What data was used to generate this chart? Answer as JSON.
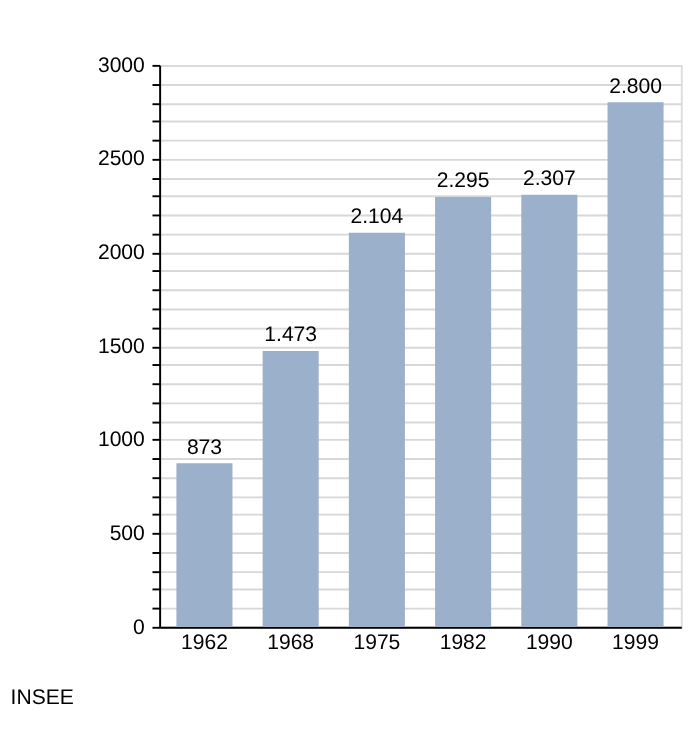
{
  "chart_data": {
    "type": "bar",
    "categories": [
      "1962",
      "1968",
      "1975",
      "1982",
      "1990",
      "1999"
    ],
    "values": [
      873,
      1473,
      2104,
      2295,
      2307,
      2800
    ],
    "value_labels": [
      "873",
      "1.473",
      "2.104",
      "2.295",
      "2.307",
      "2.800"
    ],
    "color": "#9ab0cb",
    "ylim": [
      0,
      3000
    ],
    "yticks": [
      0,
      {
        "value": 100,
        "label": null
      },
      {
        "value": 200,
        "label": null
      },
      {
        "value": 300,
        "label": null
      },
      {
        "value": 400,
        "label": null
      },
      500,
      {
        "value": 600,
        "label": null
      },
      {
        "value": 700,
        "label": null
      },
      {
        "value": 800,
        "label": null
      },
      {
        "value": 900,
        "label": null
      },
      1000,
      {
        "value": 1100,
        "label": null
      },
      {
        "value": 1200,
        "label": null
      },
      {
        "value": 1300,
        "label": null
      },
      {
        "value": 1400,
        "label": null
      },
      1500,
      {
        "value": 1600,
        "label": null
      },
      {
        "value": 1700,
        "label": null
      },
      {
        "value": 1800,
        "label": null
      },
      {
        "value": 1900,
        "label": null
      },
      2000,
      {
        "value": 2100,
        "label": null
      },
      {
        "value": 2200,
        "label": null
      },
      {
        "value": 2300,
        "label": null
      },
      {
        "value": 2400,
        "label": null
      },
      2500,
      {
        "value": 2600,
        "label": null
      },
      {
        "value": 2700,
        "label": null
      },
      {
        "value": 2800,
        "label": null
      },
      {
        "value": 2900,
        "label": null
      },
      3000
    ],
    "grid": "y",
    "annotations": [
      "INSEE"
    ]
  }
}
